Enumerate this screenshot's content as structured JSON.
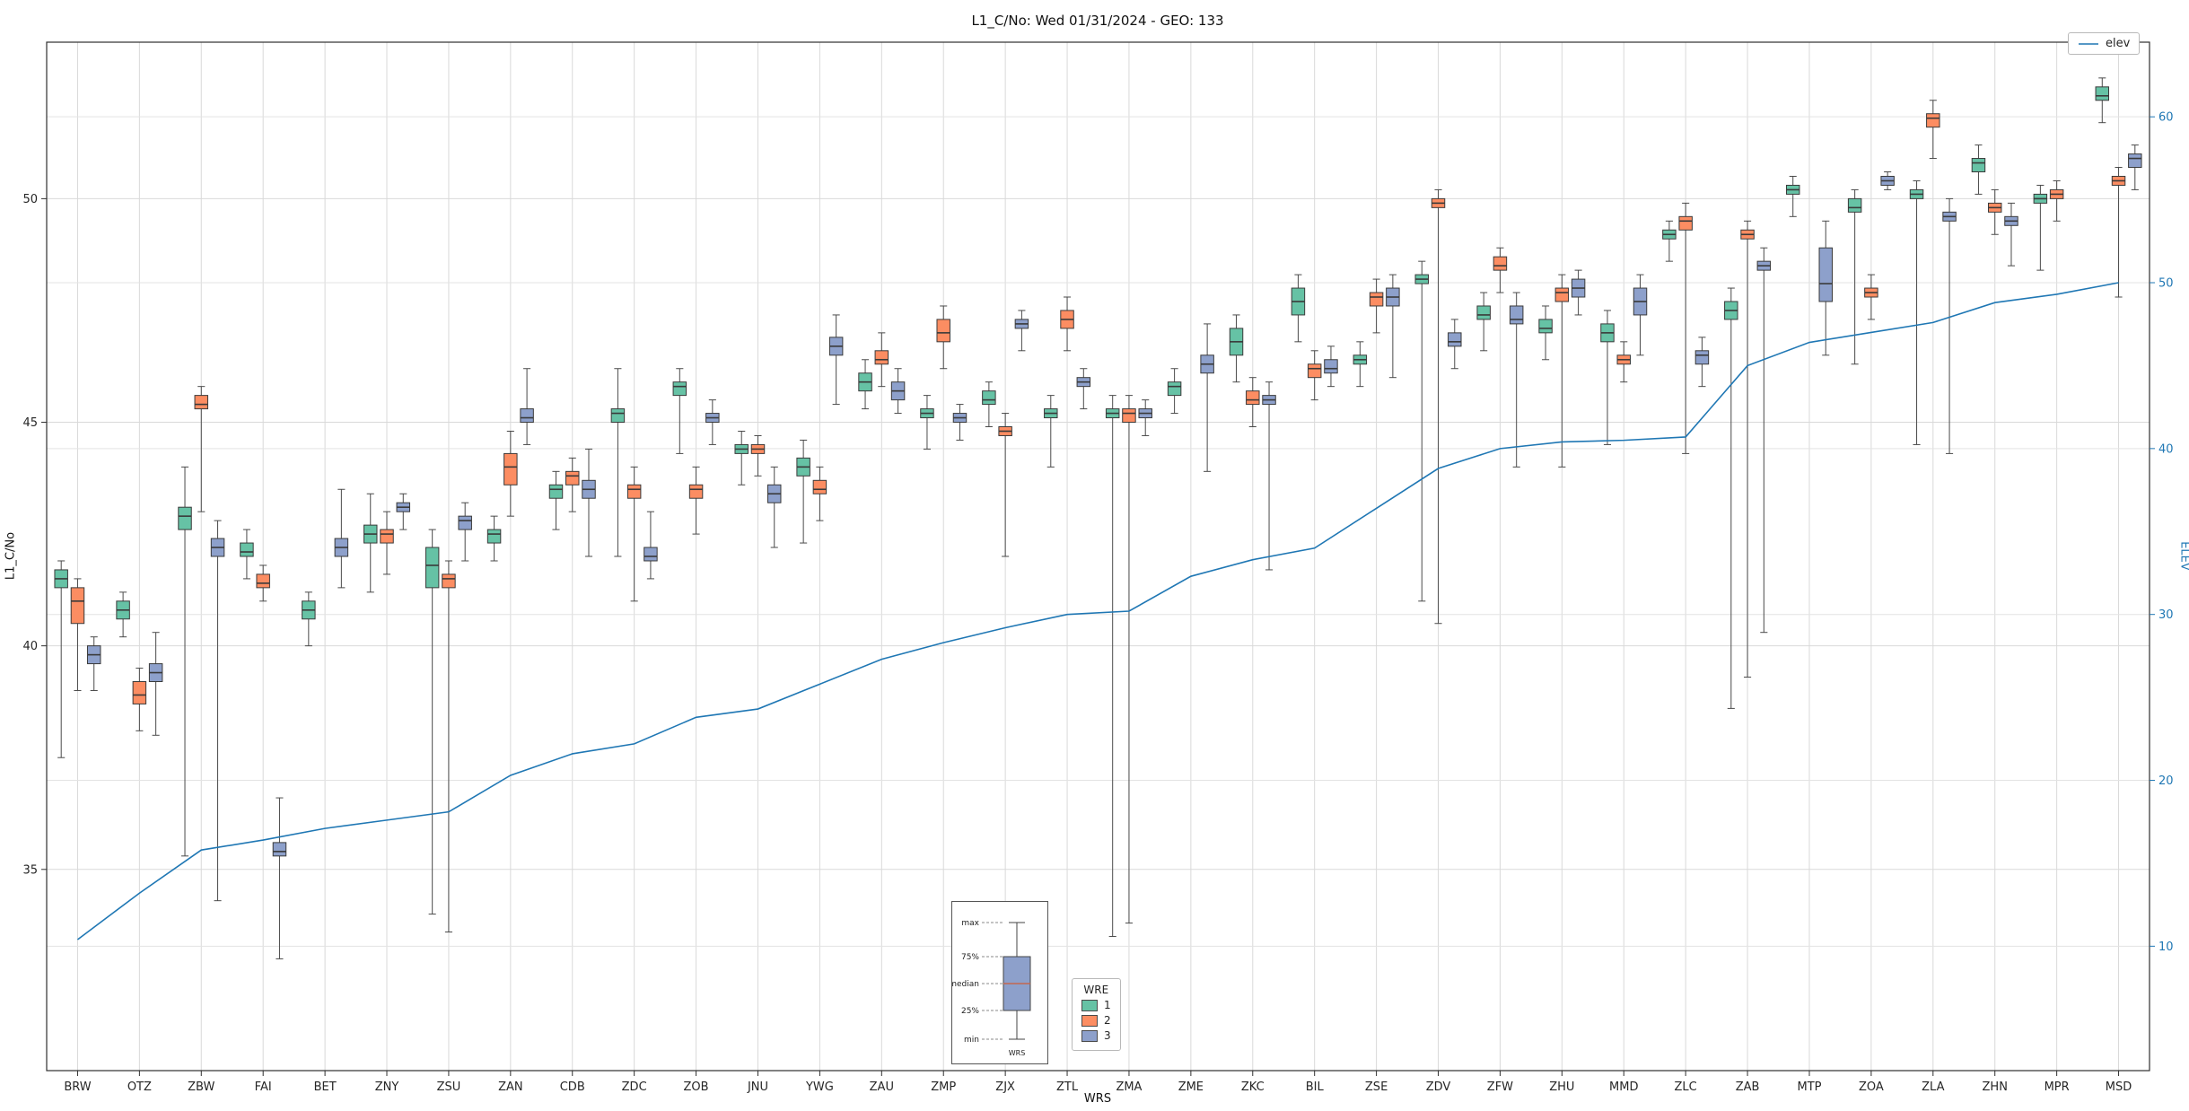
{
  "title": "L1_C/No: Wed 01/31/2024 - GEO: 133",
  "axes": {
    "left_label": "L1_C/No",
    "right_label": "ELEV",
    "x_label": "WRS",
    "left_ticks": [
      35,
      40,
      45,
      50
    ],
    "right_ticks": [
      10,
      20,
      30,
      40,
      50,
      60
    ],
    "left_range": [
      30.5,
      53.5
    ],
    "right_range": [
      2.5,
      64.5
    ]
  },
  "legend_elev": {
    "label": "elev",
    "line_color": "#1f77b4"
  },
  "legend_wre": {
    "title": "WRE",
    "entries": [
      {
        "label": "1",
        "color": "#66c2a5"
      },
      {
        "label": "2",
        "color": "#fc8d62"
      },
      {
        "label": "3",
        "color": "#8da0cb"
      }
    ]
  },
  "inset": {
    "labels": [
      "max",
      "75%",
      "median",
      "25%",
      "min"
    ],
    "x_label": "WRS",
    "box_color": "#8da0cb",
    "median_color": "#c4674f"
  },
  "chart_data": {
    "type": "boxplot+line",
    "title": "L1_C/No: Wed 01/31/2024 - GEO: 133",
    "xlabel": "WRS",
    "ylabel_left": "L1_C/No",
    "ylabel_right": "ELEV",
    "legend_position": "lower center / upper right",
    "grid": true,
    "series_names": [
      "WRE 1",
      "WRE 2",
      "WRE 3"
    ],
    "colors": [
      "#66c2a5",
      "#fc8d62",
      "#8da0cb"
    ],
    "line_color": "#1f77b4",
    "categories": [
      "BRW",
      "OTZ",
      "ZBW",
      "FAI",
      "BET",
      "ZNY",
      "ZSU",
      "ZAN",
      "CDB",
      "ZDC",
      "ZOB",
      "JNU",
      "YWG",
      "ZAU",
      "ZMP",
      "ZJX",
      "ZTL",
      "ZMA",
      "ZME",
      "ZKC",
      "BIL",
      "ZSE",
      "ZDV",
      "ZFW",
      "ZHU",
      "MMD",
      "ZLC",
      "ZAB",
      "MTP",
      "ZOA",
      "ZLA",
      "ZHN",
      "MPR",
      "MSD"
    ],
    "elev": [
      10.4,
      13.2,
      15.8,
      16.4,
      17.1,
      17.6,
      18.1,
      20.3,
      21.6,
      22.2,
      23.8,
      24.3,
      25.8,
      27.3,
      28.3,
      29.2,
      30.0,
      30.2,
      32.3,
      33.3,
      34.0,
      36.4,
      38.8,
      40.0,
      40.4,
      40.5,
      40.7,
      45.0,
      46.4,
      47.0,
      47.6,
      48.8,
      49.3,
      50.0
    ],
    "boxes": [
      {
        "station": "BRW",
        "w1": [
          37.5,
          41.3,
          41.5,
          41.7,
          41.9
        ],
        "w2": [
          39.0,
          40.5,
          41.0,
          41.3,
          41.5
        ],
        "w3": [
          39.0,
          39.6,
          39.8,
          40.0,
          40.2
        ]
      },
      {
        "station": "OTZ",
        "w1": [
          40.2,
          40.6,
          40.8,
          41.0,
          41.2
        ],
        "w2": [
          38.1,
          38.7,
          38.9,
          39.2,
          39.5
        ],
        "w3": [
          38.0,
          39.2,
          39.4,
          39.6,
          40.3
        ]
      },
      {
        "station": "ZBW",
        "w1": [
          35.3,
          42.6,
          42.9,
          43.1,
          44.0
        ],
        "w2": [
          43.0,
          45.3,
          45.4,
          45.6,
          45.8
        ],
        "w3": [
          34.3,
          42.0,
          42.2,
          42.4,
          42.8
        ]
      },
      {
        "station": "FAI",
        "w1": [
          41.5,
          42.0,
          42.1,
          42.3,
          42.6
        ],
        "w2": [
          41.0,
          41.3,
          41.4,
          41.6,
          41.8
        ],
        "w3": [
          33.0,
          35.3,
          35.4,
          35.6,
          36.6
        ]
      },
      {
        "station": "BET",
        "w1": [
          40.0,
          40.6,
          40.8,
          41.0,
          41.2
        ],
        "w2": null,
        "w3": [
          41.3,
          42.0,
          42.2,
          42.4,
          43.5
        ]
      },
      {
        "station": "ZNY",
        "w1": [
          41.2,
          42.3,
          42.5,
          42.7,
          43.4
        ],
        "w2": [
          41.6,
          42.3,
          42.5,
          42.6,
          43.0
        ],
        "w3": [
          42.6,
          43.0,
          43.1,
          43.2,
          43.4
        ]
      },
      {
        "station": "ZSU",
        "w1": [
          34.0,
          41.3,
          41.8,
          42.2,
          42.6
        ],
        "w2": [
          33.6,
          41.3,
          41.5,
          41.6,
          41.9
        ],
        "w3": [
          41.9,
          42.6,
          42.8,
          42.9,
          43.2
        ]
      },
      {
        "station": "ZAN",
        "w1": [
          41.9,
          42.3,
          42.5,
          42.6,
          42.9
        ],
        "w2": [
          42.9,
          43.6,
          44.0,
          44.3,
          44.8
        ],
        "w3": [
          44.5,
          45.0,
          45.1,
          45.3,
          46.2
        ]
      },
      {
        "station": "CDB",
        "w1": [
          42.6,
          43.3,
          43.5,
          43.6,
          43.9
        ],
        "w2": [
          43.0,
          43.6,
          43.8,
          43.9,
          44.2
        ],
        "w3": [
          42.0,
          43.3,
          43.5,
          43.7,
          44.4
        ]
      },
      {
        "station": "ZDC",
        "w1": [
          42.0,
          45.0,
          45.2,
          45.3,
          46.2
        ],
        "w2": [
          41.0,
          43.3,
          43.5,
          43.6,
          44.0
        ],
        "w3": [
          41.5,
          41.9,
          42.0,
          42.2,
          43.0
        ]
      },
      {
        "station": "ZOB",
        "w1": [
          44.3,
          45.6,
          45.8,
          45.9,
          46.2
        ],
        "w2": [
          42.5,
          43.3,
          43.5,
          43.6,
          44.0
        ],
        "w3": [
          44.5,
          45.0,
          45.1,
          45.2,
          45.5
        ]
      },
      {
        "station": "JNU",
        "w1": [
          43.6,
          44.3,
          44.4,
          44.5,
          44.8
        ],
        "w2": [
          43.8,
          44.3,
          44.4,
          44.5,
          44.7
        ],
        "w3": [
          42.2,
          43.2,
          43.4,
          43.6,
          44.0
        ]
      },
      {
        "station": "YWG",
        "w1": [
          42.3,
          43.8,
          44.0,
          44.2,
          44.6
        ],
        "w2": [
          42.8,
          43.4,
          43.5,
          43.7,
          44.0
        ],
        "w3": [
          45.4,
          46.5,
          46.7,
          46.9,
          47.4
        ]
      },
      {
        "station": "ZAU",
        "w1": [
          45.3,
          45.7,
          45.9,
          46.1,
          46.4
        ],
        "w2": [
          45.8,
          46.3,
          46.4,
          46.6,
          47.0
        ],
        "w3": [
          45.2,
          45.5,
          45.7,
          45.9,
          46.2
        ]
      },
      {
        "station": "ZMP",
        "w1": [
          44.4,
          45.1,
          45.2,
          45.3,
          45.6
        ],
        "w2": [
          46.2,
          46.8,
          47.0,
          47.3,
          47.6
        ],
        "w3": [
          44.6,
          45.0,
          45.1,
          45.2,
          45.4
        ]
      },
      {
        "station": "ZJX",
        "w1": [
          44.9,
          45.4,
          45.5,
          45.7,
          45.9
        ],
        "w2": [
          42.0,
          44.7,
          44.8,
          44.9,
          45.2
        ],
        "w3": [
          46.6,
          47.1,
          47.2,
          47.3,
          47.5
        ]
      },
      {
        "station": "ZTL",
        "w1": [
          44.0,
          45.1,
          45.2,
          45.3,
          45.6
        ],
        "w2": [
          46.6,
          47.1,
          47.3,
          47.5,
          47.8
        ],
        "w3": [
          45.3,
          45.8,
          45.9,
          46.0,
          46.2
        ]
      },
      {
        "station": "ZMA",
        "w1": [
          33.5,
          45.1,
          45.2,
          45.3,
          45.6
        ],
        "w2": [
          33.8,
          45.0,
          45.2,
          45.3,
          45.6
        ],
        "w3": [
          44.7,
          45.1,
          45.2,
          45.3,
          45.5
        ]
      },
      {
        "station": "ZME",
        "w1": [
          45.2,
          45.6,
          45.8,
          45.9,
          46.2
        ],
        "w2": null,
        "w3": [
          43.9,
          46.1,
          46.3,
          46.5,
          47.2
        ]
      },
      {
        "station": "ZKC",
        "w1": [
          45.9,
          46.5,
          46.8,
          47.1,
          47.4
        ],
        "w2": [
          44.9,
          45.4,
          45.5,
          45.7,
          46.0
        ],
        "w3": [
          41.7,
          45.4,
          45.5,
          45.6,
          45.9
        ]
      },
      {
        "station": "BIL",
        "w1": [
          46.8,
          47.4,
          47.7,
          48.0,
          48.3
        ],
        "w2": [
          45.5,
          46.0,
          46.2,
          46.3,
          46.6
        ],
        "w3": [
          45.8,
          46.1,
          46.2,
          46.4,
          46.7
        ]
      },
      {
        "station": "ZSE",
        "w1": [
          45.8,
          46.3,
          46.4,
          46.5,
          46.8
        ],
        "w2": [
          47.0,
          47.6,
          47.8,
          47.9,
          48.2
        ],
        "w3": [
          46.0,
          47.6,
          47.8,
          48.0,
          48.3
        ]
      },
      {
        "station": "ZDV",
        "w1": [
          41.0,
          48.1,
          48.2,
          48.3,
          48.6
        ],
        "w2": [
          40.5,
          49.8,
          49.9,
          50.0,
          50.2
        ],
        "w3": [
          46.2,
          46.7,
          46.8,
          47.0,
          47.3
        ]
      },
      {
        "station": "ZFW",
        "w1": [
          46.6,
          47.3,
          47.4,
          47.6,
          47.9
        ],
        "w2": [
          47.9,
          48.4,
          48.5,
          48.7,
          48.9
        ],
        "w3": [
          44.0,
          47.2,
          47.3,
          47.6,
          47.9
        ]
      },
      {
        "station": "ZHU",
        "w1": [
          46.4,
          47.0,
          47.1,
          47.3,
          47.6
        ],
        "w2": [
          44.0,
          47.7,
          47.9,
          48.0,
          48.3
        ],
        "w3": [
          47.4,
          47.8,
          48.0,
          48.2,
          48.4
        ]
      },
      {
        "station": "MMD",
        "w1": [
          44.5,
          46.8,
          47.0,
          47.2,
          47.5
        ],
        "w2": [
          45.9,
          46.3,
          46.4,
          46.5,
          46.8
        ],
        "w3": [
          46.5,
          47.4,
          47.7,
          48.0,
          48.3
        ]
      },
      {
        "station": "ZLC",
        "w1": [
          48.6,
          49.1,
          49.2,
          49.3,
          49.5
        ],
        "w2": [
          44.3,
          49.3,
          49.5,
          49.6,
          49.9
        ],
        "w3": [
          45.8,
          46.3,
          46.5,
          46.6,
          46.9
        ]
      },
      {
        "station": "ZAB",
        "w1": [
          38.6,
          47.3,
          47.5,
          47.7,
          48.0
        ],
        "w2": [
          39.3,
          49.1,
          49.2,
          49.3,
          49.5
        ],
        "w3": [
          40.3,
          48.4,
          48.5,
          48.6,
          48.9
        ]
      },
      {
        "station": "MTP",
        "w1": [
          49.6,
          50.1,
          50.2,
          50.3,
          50.5
        ],
        "w2": null,
        "w3": [
          46.5,
          47.7,
          48.1,
          48.9,
          49.5
        ]
      },
      {
        "station": "ZOA",
        "w1": [
          46.3,
          49.7,
          49.8,
          50.0,
          50.2
        ],
        "w2": [
          47.3,
          47.8,
          47.9,
          48.0,
          48.3
        ],
        "w3": [
          50.2,
          50.3,
          50.4,
          50.5,
          50.6
        ]
      },
      {
        "station": "ZLA",
        "w1": [
          44.5,
          50.0,
          50.1,
          50.2,
          50.4
        ],
        "w2": [
          50.9,
          51.6,
          51.8,
          51.9,
          52.2
        ],
        "w3": [
          44.3,
          49.5,
          49.6,
          49.7,
          50.0
        ]
      },
      {
        "station": "ZHN",
        "w1": [
          50.1,
          50.6,
          50.8,
          50.9,
          51.2
        ],
        "w2": [
          49.2,
          49.7,
          49.8,
          49.9,
          50.2
        ],
        "w3": [
          48.5,
          49.4,
          49.5,
          49.6,
          49.9
        ]
      },
      {
        "station": "MPR",
        "w1": [
          48.4,
          49.9,
          50.0,
          50.1,
          50.3
        ],
        "w2": [
          49.5,
          50.0,
          50.1,
          50.2,
          50.4
        ],
        "w3": null
      },
      {
        "station": "MSD",
        "w1": [
          51.7,
          52.2,
          52.3,
          52.5,
          52.7
        ],
        "w2": [
          47.8,
          50.3,
          50.4,
          50.5,
          50.7
        ],
        "w3": [
          50.2,
          50.7,
          50.9,
          51.0,
          51.2
        ]
      }
    ]
  }
}
